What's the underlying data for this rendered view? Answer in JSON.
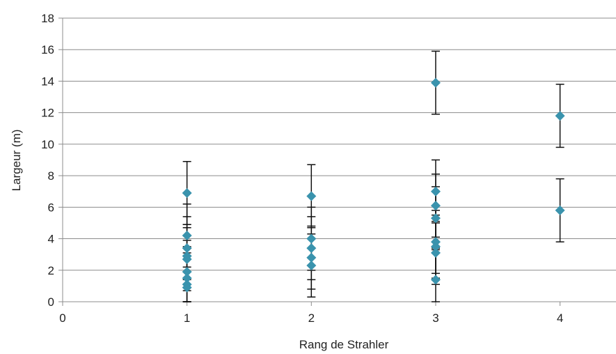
{
  "chart_data": {
    "type": "scatter",
    "xlabel": "Rang de Strahler",
    "ylabel": "Largeur (m)",
    "xlim": [
      0,
      4.45
    ],
    "ylim": [
      0,
      18
    ],
    "xticks": [
      0,
      1,
      2,
      3,
      4
    ],
    "yticks": [
      0,
      2,
      4,
      6,
      8,
      10,
      12,
      14,
      16,
      18
    ],
    "grid": "horizontal",
    "marker": "diamond",
    "marker_color": "#3a93ad",
    "series": [
      {
        "points": [
          {
            "x": 1,
            "y": 6.9,
            "err": 2.0
          },
          {
            "x": 1,
            "y": 4.2,
            "err": 2.0
          },
          {
            "x": 1,
            "y": 3.4,
            "err": 2.0
          },
          {
            "x": 1,
            "y": 2.9,
            "err": 2.0
          },
          {
            "x": 1,
            "y": 2.7,
            "err": 2.0
          },
          {
            "x": 1,
            "y": 1.9,
            "err": 2.0
          },
          {
            "x": 1,
            "y": 1.5,
            "err": 2.0
          },
          {
            "x": 1,
            "y": 1.1,
            "err": 2.0
          },
          {
            "x": 1,
            "y": 0.9,
            "err": 2.0
          },
          {
            "x": 2,
            "y": 6.7,
            "err": 2.0
          },
          {
            "x": 2,
            "y": 4.0,
            "err": 2.0
          },
          {
            "x": 2,
            "y": 3.4,
            "err": 2.0
          },
          {
            "x": 2,
            "y": 2.8,
            "err": 2.0
          },
          {
            "x": 2,
            "y": 2.3,
            "err": 2.0
          },
          {
            "x": 3,
            "y": 13.9,
            "err": 2.0
          },
          {
            "x": 3,
            "y": 7.0,
            "err": 2.0
          },
          {
            "x": 3,
            "y": 6.1,
            "err": 2.0
          },
          {
            "x": 3,
            "y": 5.3,
            "err": 2.0
          },
          {
            "x": 3,
            "y": 3.8,
            "err": 2.0
          },
          {
            "x": 3,
            "y": 3.5,
            "err": 2.0
          },
          {
            "x": 3,
            "y": 3.1,
            "err": 2.0
          },
          {
            "x": 3,
            "y": 1.4,
            "err": 2.0
          },
          {
            "x": 4,
            "y": 11.8,
            "err": 2.0
          },
          {
            "x": 4,
            "y": 5.8,
            "err": 2.0
          }
        ]
      }
    ]
  }
}
